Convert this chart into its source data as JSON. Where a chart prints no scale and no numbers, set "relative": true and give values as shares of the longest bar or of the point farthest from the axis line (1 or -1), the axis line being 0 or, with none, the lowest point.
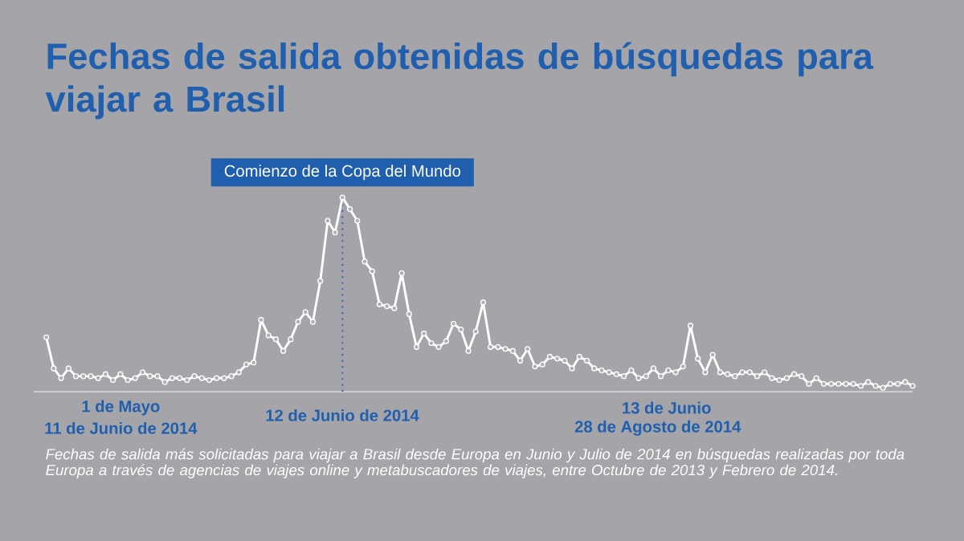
{
  "chart_data": {
    "type": "line",
    "title": "Fechas de salida obtenidas de búsquedas para viajar a Brasil",
    "relative": true,
    "marker": "circle",
    "annotations": [
      {
        "text": "Comienzo de la Copa del Mundo",
        "y": 1.0
      },
      "1 de Mayo",
      "11 de Junio de 2014",
      "12 de Junio de 2014",
      "13 de Junio",
      "28 de Agosto de 2014",
      "Fechas de salida más solicitadas para viajar a Brasil desde Europa en Junio y Julio de 2014 en búsquedas realizadas por toda Europa a través de agencias de viajes online y metabuscadores de viajes, entre Octubre de 2013 y Febrero de 2014."
    ],
    "categories": [
      null,
      null,
      null,
      null,
      null,
      null,
      null,
      null,
      null,
      null,
      null,
      null,
      null,
      null,
      null,
      null,
      null,
      null,
      null,
      null,
      null,
      null,
      null,
      null,
      null,
      null,
      null,
      null,
      null,
      null,
      null,
      null,
      null,
      null,
      null,
      null,
      null,
      null,
      null,
      null,
      null,
      null,
      null,
      null,
      null,
      null,
      null,
      null,
      null,
      null,
      null,
      null,
      null,
      null,
      null,
      null,
      null,
      null,
      null,
      null,
      null,
      null,
      null,
      null,
      null,
      null,
      null,
      null,
      null,
      null,
      null,
      null,
      null,
      null,
      null,
      null,
      null,
      null,
      null,
      null,
      null,
      null,
      null,
      null,
      null,
      null,
      null,
      null,
      null,
      null,
      null,
      null,
      null,
      null,
      null,
      null,
      null,
      null,
      null,
      null,
      null,
      null,
      null,
      null,
      null,
      null,
      null,
      null,
      null,
      null,
      null,
      null,
      null,
      null,
      null,
      null,
      null,
      null
    ],
    "series": [
      {
        "color": "#ffffff",
        "values": [
          0.28,
          0.12,
          0.07,
          0.12,
          0.08,
          0.08,
          0.08,
          0.07,
          0.09,
          0.06,
          0.09,
          0.06,
          0.07,
          0.1,
          0.08,
          0.08,
          0.05,
          0.07,
          0.07,
          0.06,
          0.08,
          0.07,
          0.06,
          0.07,
          0.07,
          0.08,
          0.1,
          0.14,
          0.15,
          0.37,
          0.29,
          0.27,
          0.21,
          0.27,
          0.36,
          0.41,
          0.36,
          0.57,
          0.88,
          0.82,
          1.0,
          0.94,
          0.88,
          0.67,
          0.62,
          0.45,
          0.44,
          0.43,
          0.61,
          0.4,
          0.23,
          0.3,
          0.25,
          0.23,
          0.26,
          0.35,
          0.32,
          0.21,
          0.31,
          0.46,
          0.23,
          0.23,
          0.22,
          0.21,
          0.16,
          0.22,
          0.13,
          0.14,
          0.18,
          0.17,
          0.16,
          0.12,
          0.18,
          0.16,
          0.12,
          0.11,
          0.1,
          0.09,
          0.08,
          0.11,
          0.07,
          0.08,
          0.12,
          0.08,
          0.11,
          0.1,
          0.13,
          0.34,
          0.17,
          0.1,
          0.19,
          0.1,
          0.09,
          0.08,
          0.1,
          0.1,
          0.08,
          0.1,
          0.07,
          0.06,
          0.07,
          0.09,
          0.08,
          0.04,
          0.07,
          0.04,
          0.04,
          0.04,
          0.04,
          0.04,
          0.03,
          0.05,
          0.03,
          0.02,
          0.04,
          0.04,
          0.05,
          0.03
        ]
      }
    ]
  }
}
